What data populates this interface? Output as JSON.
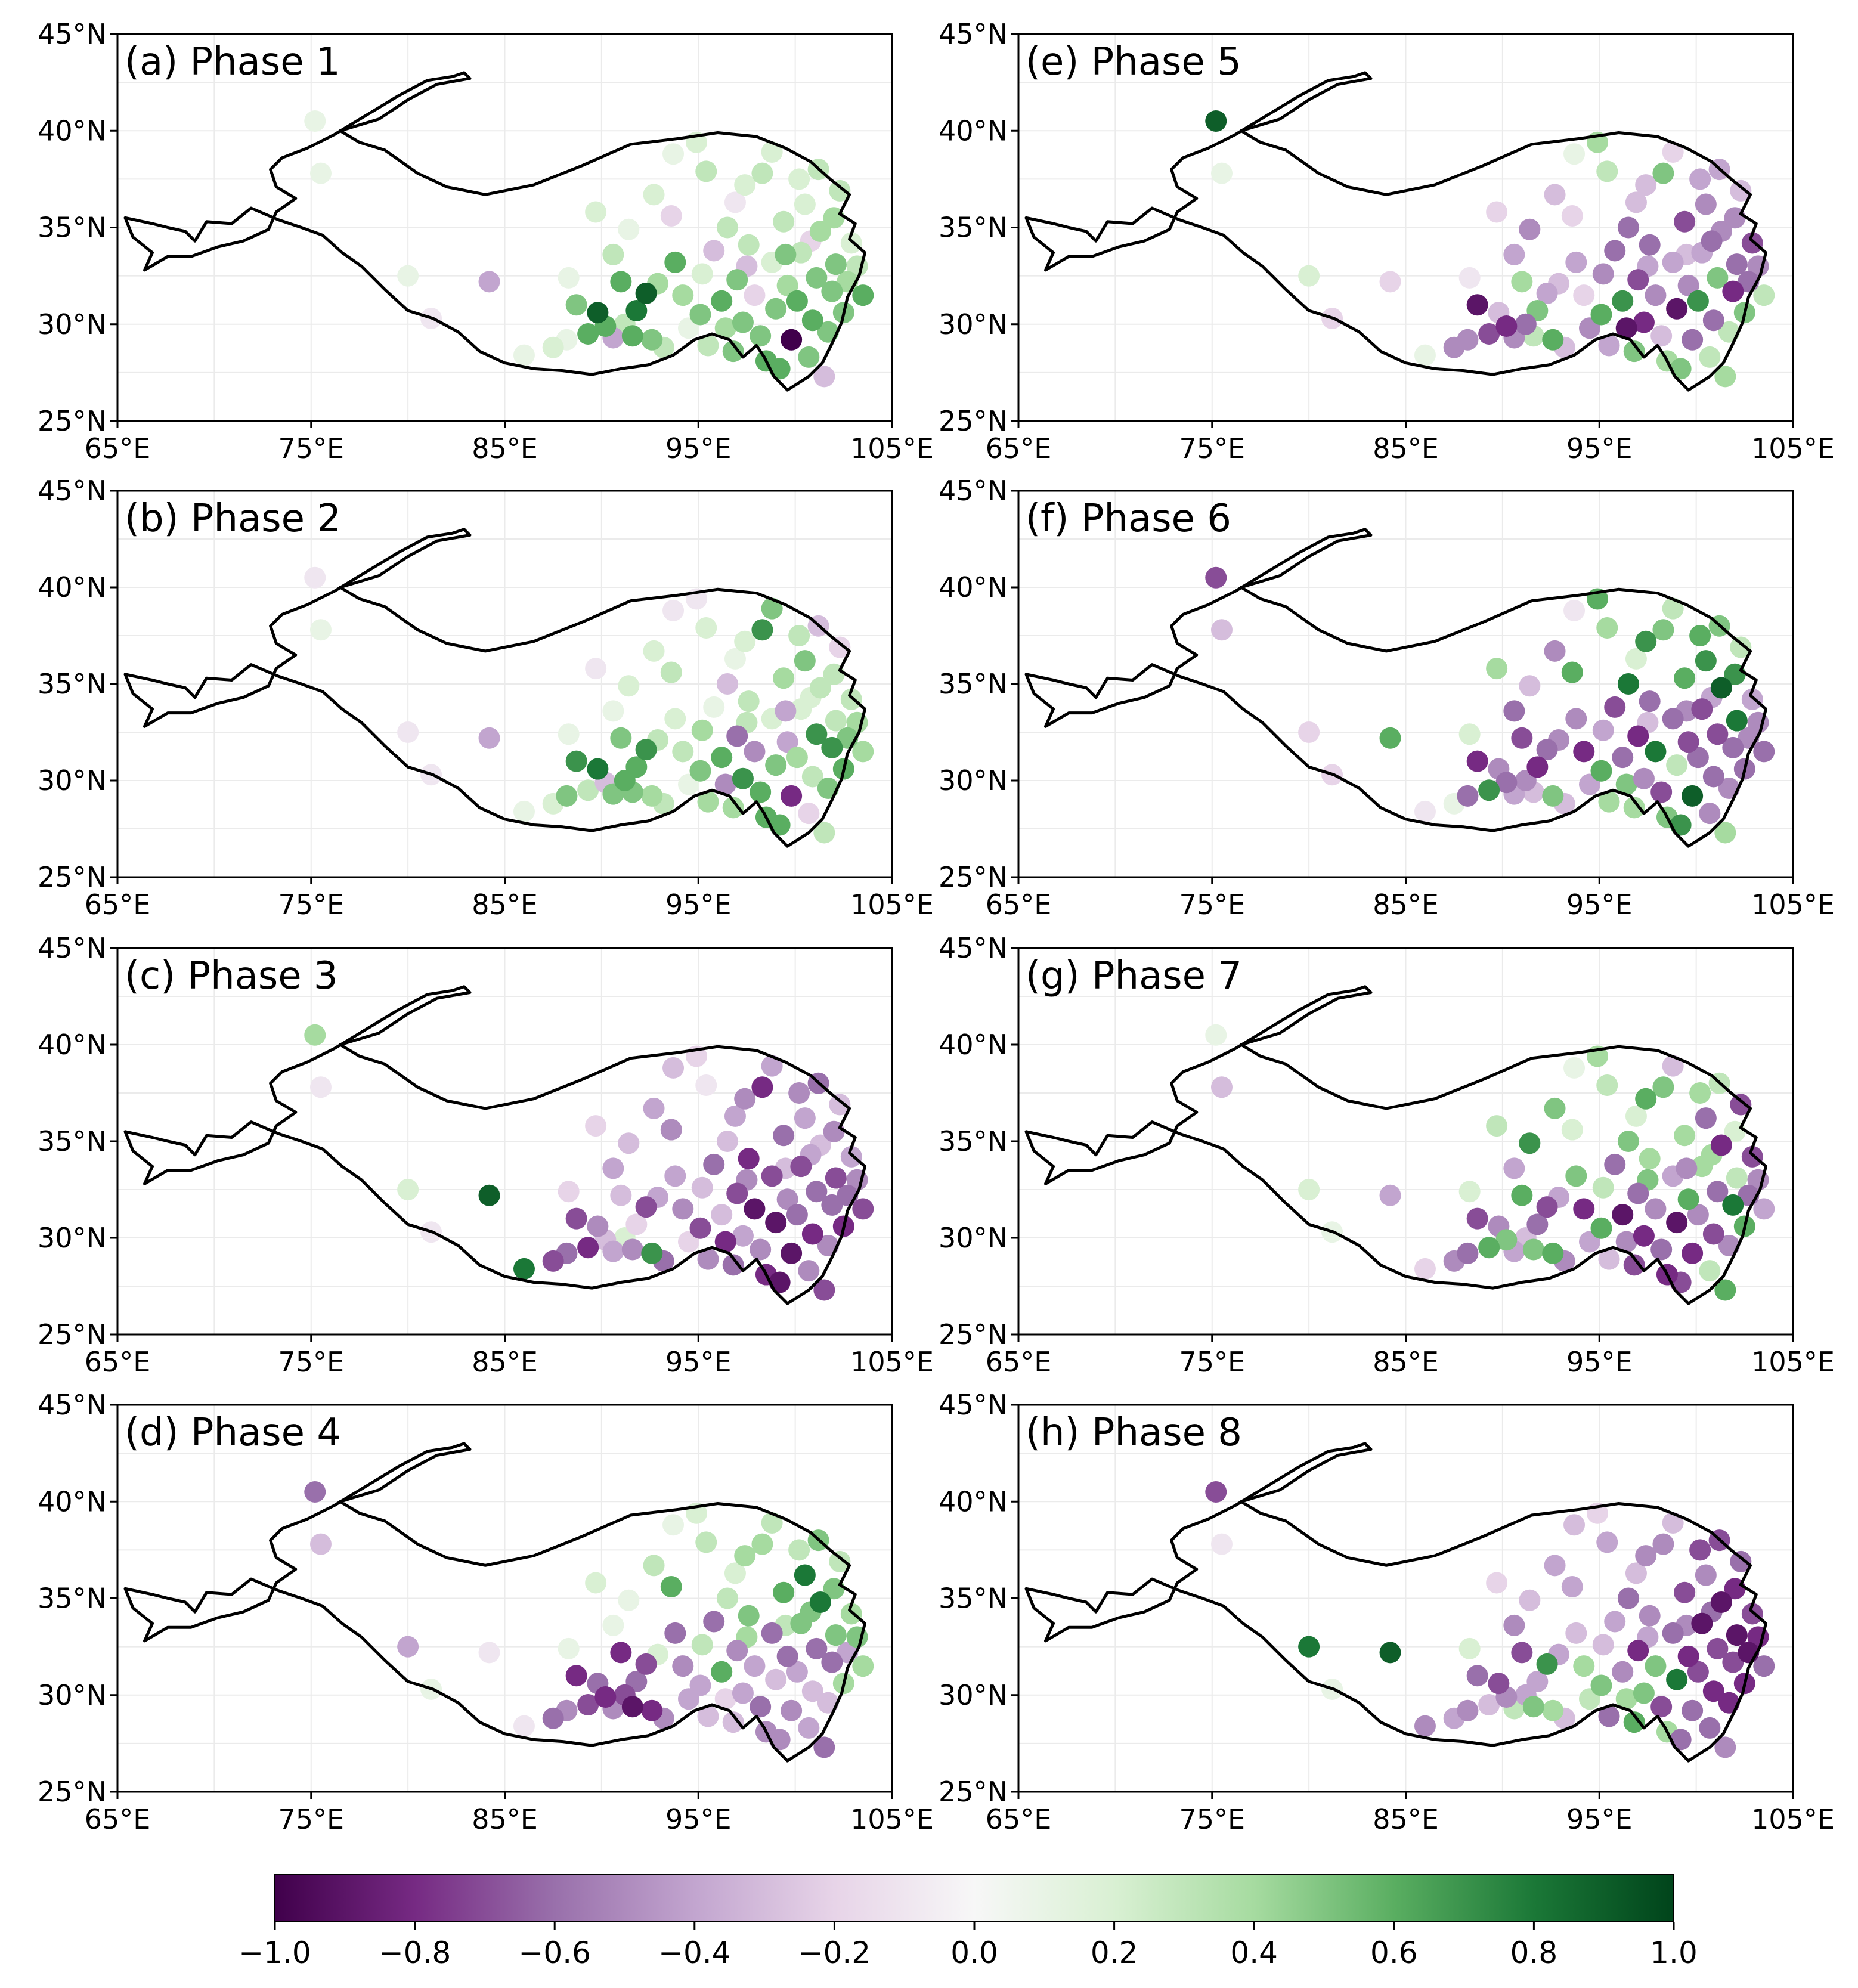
{
  "figure": {
    "colorbar": {
      "ticks": [
        "−1.0",
        "−0.8",
        "−0.6",
        "−0.4",
        "−0.2",
        "0.0",
        "0.2",
        "0.4",
        "0.6",
        "0.8",
        "1.0"
      ],
      "range": [
        -1.0,
        1.0
      ],
      "colormap": "PRGn",
      "low_color": "#40004b",
      "mid_color": "#f7f7f7",
      "high_color": "#00441b"
    },
    "axes": {
      "lon_ticks": [
        "65°E",
        "75°E",
        "85°E",
        "95°E",
        "105°E"
      ],
      "lat_ticks": [
        "45°N",
        "40°N",
        "35°N",
        "30°N",
        "25°N"
      ],
      "lon_range": [
        65,
        105
      ],
      "lat_range": [
        25,
        45
      ]
    },
    "panels": [
      {
        "title": "(a) Phase 1"
      },
      {
        "title": "(b) Phase 2"
      },
      {
        "title": "(c) Phase 3"
      },
      {
        "title": "(d) Phase 4"
      },
      {
        "title": "(e) Phase 5"
      },
      {
        "title": "(f) Phase 6"
      },
      {
        "title": "(g) Phase 7"
      },
      {
        "title": "(h) Phase 8"
      }
    ]
  },
  "chart_data": {
    "type": "scatter",
    "title": "",
    "xlabel": "",
    "ylabel": "",
    "xlim": [
      65,
      105
    ],
    "ylim": [
      25,
      45
    ],
    "stations": [
      [
        75.2,
        40.5
      ],
      [
        75.5,
        37.8
      ],
      [
        80.0,
        32.5
      ],
      [
        81.2,
        30.3
      ],
      [
        84.2,
        32.2
      ],
      [
        86.0,
        28.4
      ],
      [
        87.5,
        28.8
      ],
      [
        88.2,
        29.2
      ],
      [
        88.7,
        31.0
      ],
      [
        89.3,
        29.5
      ],
      [
        89.8,
        30.6
      ],
      [
        90.2,
        29.9
      ],
      [
        90.6,
        29.3
      ],
      [
        91.0,
        32.2
      ],
      [
        91.2,
        30.0
      ],
      [
        91.6,
        29.4
      ],
      [
        91.8,
        30.7
      ],
      [
        92.3,
        31.6
      ],
      [
        92.6,
        29.2
      ],
      [
        93.2,
        28.8
      ],
      [
        93.8,
        33.2
      ],
      [
        94.2,
        31.5
      ],
      [
        94.5,
        29.8
      ],
      [
        95.1,
        30.5
      ],
      [
        95.5,
        28.9
      ],
      [
        95.8,
        33.8
      ],
      [
        96.2,
        31.2
      ],
      [
        96.4,
        29.8
      ],
      [
        96.8,
        28.6
      ],
      [
        97.0,
        32.3
      ],
      [
        97.3,
        30.1
      ],
      [
        97.6,
        34.1
      ],
      [
        97.9,
        31.5
      ],
      [
        98.2,
        29.4
      ],
      [
        98.5,
        28.1
      ],
      [
        98.8,
        33.2
      ],
      [
        99.0,
        30.8
      ],
      [
        99.2,
        27.7
      ],
      [
        99.4,
        35.3
      ],
      [
        99.6,
        32.0
      ],
      [
        99.8,
        29.2
      ],
      [
        100.1,
        31.2
      ],
      [
        100.3,
        33.7
      ],
      [
        100.5,
        36.2
      ],
      [
        100.7,
        28.3
      ],
      [
        100.9,
        30.2
      ],
      [
        101.1,
        32.4
      ],
      [
        101.3,
        34.8
      ],
      [
        101.5,
        27.3
      ],
      [
        101.7,
        29.6
      ],
      [
        101.9,
        31.7
      ],
      [
        102.1,
        33.1
      ],
      [
        102.3,
        36.9
      ],
      [
        102.5,
        30.6
      ],
      [
        102.7,
        32.2
      ],
      [
        102.9,
        34.2
      ],
      [
        103.2,
        33.0
      ],
      [
        103.5,
        31.5
      ],
      [
        100.2,
        37.5
      ],
      [
        98.3,
        37.8
      ],
      [
        96.9,
        36.3
      ],
      [
        95.4,
        37.9
      ],
      [
        93.7,
        38.8
      ],
      [
        94.9,
        39.4
      ],
      [
        92.7,
        36.7
      ],
      [
        91.4,
        34.9
      ],
      [
        89.7,
        35.8
      ],
      [
        90.6,
        33.6
      ],
      [
        93.6,
        35.6
      ],
      [
        96.5,
        35.0
      ],
      [
        97.4,
        37.2
      ],
      [
        98.8,
        38.9
      ],
      [
        101.2,
        38.0
      ],
      [
        102.0,
        35.5
      ],
      [
        100.8,
        34.3
      ],
      [
        99.5,
        33.6
      ],
      [
        97.5,
        33.0
      ],
      [
        95.2,
        32.6
      ],
      [
        92.9,
        32.1
      ],
      [
        88.3,
        32.4
      ]
    ],
    "phase_values": [
      [
        0.1,
        0.1,
        0.1,
        -0.1,
        -0.4,
        0.1,
        0.2,
        0.1,
        0.5,
        0.6,
        0.9,
        0.6,
        -0.4,
        0.6,
        0.3,
        0.6,
        0.8,
        0.9,
        0.5,
        0.3,
        0.6,
        0.4,
        0.1,
        0.5,
        0.3,
        -0.3,
        0.6,
        0.4,
        0.5,
        0.5,
        0.5,
        0.3,
        -0.2,
        0.5,
        0.6,
        0.2,
        0.5,
        0.6,
        0.3,
        0.4,
        -1.0,
        0.6,
        0.3,
        0.2,
        0.5,
        0.6,
        0.5,
        0.4,
        -0.3,
        0.5,
        0.5,
        0.5,
        0.3,
        0.5,
        0.4,
        0.2,
        0.3,
        0.6,
        0.2,
        0.3,
        -0.1,
        0.3,
        0.1,
        0.2,
        0.2,
        0.1,
        0.2,
        0.3,
        -0.2,
        0.3,
        0.2,
        0.2,
        0.3,
        0.4,
        -0.2,
        0.5,
        -0.3,
        0.2,
        0.4,
        0.1
      ],
      [
        -0.1,
        0.1,
        -0.1,
        -0.1,
        -0.4,
        0.1,
        0.2,
        0.5,
        0.7,
        0.3,
        0.8,
        -0.3,
        0.5,
        0.5,
        0.6,
        0.5,
        0.6,
        0.7,
        0.4,
        0.3,
        0.2,
        0.3,
        0.1,
        0.5,
        0.4,
        0.1,
        0.6,
        -0.5,
        0.4,
        -0.6,
        0.7,
        0.3,
        -0.5,
        0.6,
        0.6,
        0.2,
        0.5,
        0.6,
        0.4,
        -0.4,
        -0.8,
        0.4,
        0.2,
        0.5,
        -0.2,
        0.3,
        0.7,
        0.3,
        0.3,
        0.5,
        0.7,
        0.3,
        -0.2,
        0.6,
        0.5,
        0.3,
        0.4,
        0.4,
        0.3,
        0.7,
        0.1,
        0.2,
        -0.1,
        -0.1,
        0.2,
        0.2,
        -0.1,
        0.1,
        0.3,
        -0.3,
        0.2,
        0.5,
        -0.3,
        0.3,
        0.2,
        -0.4,
        0.3,
        0.4,
        0.3,
        0.1
      ],
      [
        0.4,
        -0.1,
        0.2,
        -0.1,
        0.9,
        0.8,
        -0.7,
        -0.6,
        -0.7,
        -0.8,
        -0.5,
        -0.3,
        -0.4,
        -0.3,
        0.2,
        -0.5,
        -0.2,
        -0.7,
        0.7,
        -0.6,
        -0.4,
        -0.5,
        -0.2,
        -0.7,
        -0.5,
        -0.6,
        -0.3,
        -0.8,
        -0.6,
        -0.7,
        -0.4,
        -0.8,
        -0.9,
        -0.5,
        -0.8,
        -0.7,
        -0.9,
        -0.9,
        -0.6,
        -0.5,
        -0.9,
        -0.6,
        -0.7,
        -0.4,
        -0.5,
        -0.8,
        -0.6,
        -0.3,
        -0.7,
        -0.5,
        -0.6,
        -0.7,
        -0.3,
        -0.8,
        -0.6,
        -0.4,
        -0.5,
        -0.7,
        -0.5,
        -0.8,
        -0.4,
        -0.1,
        -0.3,
        -0.2,
        -0.4,
        -0.3,
        -0.2,
        -0.4,
        -0.5,
        -0.3,
        -0.5,
        -0.4,
        -0.6,
        -0.5,
        -0.4,
        -0.3,
        -0.5,
        -0.3,
        -0.4,
        -0.2
      ],
      [
        -0.6,
        -0.3,
        -0.4,
        0.1,
        -0.1,
        -0.1,
        -0.6,
        -0.5,
        -0.8,
        -0.7,
        -0.6,
        -0.8,
        -0.5,
        -0.8,
        -0.7,
        -0.9,
        -0.6,
        -0.7,
        -0.8,
        -0.5,
        -0.6,
        -0.5,
        -0.4,
        -0.4,
        -0.3,
        -0.6,
        0.6,
        -0.2,
        -0.3,
        -0.5,
        -0.4,
        0.5,
        -0.4,
        -0.6,
        -0.5,
        -0.6,
        -0.3,
        -0.5,
        0.6,
        -0.6,
        -0.5,
        -0.4,
        0.5,
        0.8,
        -0.4,
        -0.3,
        -0.6,
        0.8,
        -0.6,
        -0.3,
        -0.6,
        0.5,
        0.3,
        0.4,
        -0.4,
        0.4,
        0.5,
        0.4,
        0.3,
        0.4,
        0.2,
        0.3,
        0.1,
        0.2,
        0.3,
        0.1,
        0.2,
        0.1,
        0.6,
        0.3,
        0.4,
        0.3,
        0.5,
        0.5,
        0.5,
        0.3,
        0.4,
        0.3,
        0.2,
        0.1
      ],
      [
        0.9,
        0.1,
        0.2,
        -0.2,
        -0.2,
        0.1,
        -0.5,
        -0.5,
        -0.9,
        -0.7,
        -0.3,
        -0.8,
        -0.5,
        0.4,
        -0.6,
        0.3,
        0.5,
        -0.4,
        0.6,
        -0.3,
        -0.4,
        -0.2,
        -0.5,
        0.6,
        -0.4,
        -0.6,
        0.7,
        -0.9,
        0.5,
        -0.7,
        -0.8,
        -0.6,
        -0.5,
        -0.3,
        0.4,
        -0.4,
        -0.9,
        0.5,
        -0.7,
        -0.5,
        -0.6,
        0.7,
        -0.4,
        -0.5,
        0.3,
        -0.6,
        0.5,
        -0.5,
        0.4,
        0.3,
        -0.8,
        -0.6,
        -0.3,
        0.5,
        -0.6,
        -0.7,
        -0.5,
        0.3,
        -0.4,
        0.5,
        -0.3,
        0.3,
        0.1,
        0.4,
        -0.3,
        -0.5,
        -0.2,
        -0.4,
        -0.2,
        -0.6,
        -0.3,
        -0.2,
        -0.4,
        -0.5,
        -0.6,
        -0.3,
        -0.4,
        -0.5,
        -0.3,
        -0.1
      ],
      [
        -0.7,
        -0.3,
        -0.2,
        -0.2,
        0.6,
        -0.1,
        0.1,
        -0.6,
        -0.8,
        0.7,
        -0.5,
        -0.6,
        -0.4,
        -0.7,
        -0.5,
        -0.3,
        -0.8,
        -0.6,
        0.5,
        -0.3,
        -0.5,
        -0.8,
        -0.4,
        0.6,
        0.4,
        -0.7,
        -0.6,
        0.5,
        0.4,
        -0.8,
        -0.5,
        -0.6,
        0.8,
        -0.7,
        0.5,
        -0.6,
        0.3,
        0.7,
        0.6,
        -0.7,
        0.9,
        -0.6,
        -0.7,
        0.7,
        -0.5,
        -0.6,
        -0.7,
        0.9,
        0.4,
        -0.5,
        -0.6,
        0.8,
        0.3,
        -0.6,
        -0.5,
        -0.4,
        -0.5,
        -0.6,
        0.6,
        0.5,
        0.2,
        0.4,
        -0.1,
        0.6,
        -0.5,
        -0.3,
        0.4,
        -0.6,
        0.6,
        0.8,
        0.7,
        0.3,
        0.5,
        0.7,
        -0.4,
        -0.5,
        -0.3,
        -0.4,
        -0.5,
        0.2
      ],
      [
        0.1,
        -0.3,
        0.2,
        0.1,
        -0.4,
        -0.2,
        -0.5,
        -0.6,
        -0.7,
        0.6,
        -0.5,
        0.5,
        -0.4,
        0.6,
        -0.3,
        0.5,
        -0.6,
        -0.7,
        0.6,
        -0.5,
        0.5,
        -0.8,
        -0.4,
        0.6,
        -0.3,
        -0.6,
        -0.9,
        -0.5,
        -0.7,
        -0.6,
        -0.8,
        0.4,
        -0.5,
        -0.6,
        -0.8,
        -0.4,
        -0.9,
        -0.7,
        0.4,
        0.6,
        -0.8,
        -0.5,
        0.4,
        -0.6,
        0.3,
        -0.7,
        -0.6,
        -0.8,
        0.6,
        -0.5,
        0.8,
        0.3,
        -0.7,
        0.6,
        -0.6,
        -0.7,
        -0.5,
        -0.4,
        0.4,
        0.5,
        0.2,
        0.3,
        0.1,
        0.4,
        0.5,
        0.7,
        0.3,
        -0.4,
        0.2,
        0.5,
        0.6,
        -0.3,
        0.3,
        0.2,
        0.4,
        -0.5,
        0.5,
        0.3,
        -0.4,
        0.2
      ],
      [
        -0.7,
        -0.1,
        0.8,
        0.1,
        0.9,
        -0.5,
        -0.4,
        -0.5,
        -0.6,
        -0.3,
        -0.7,
        -0.5,
        0.3,
        -0.7,
        -0.4,
        0.5,
        -0.4,
        0.7,
        0.4,
        -0.3,
        -0.3,
        0.4,
        0.3,
        0.5,
        -0.6,
        -0.4,
        -0.5,
        0.4,
        0.6,
        -0.8,
        0.5,
        -0.5,
        0.5,
        -0.7,
        0.4,
        -0.6,
        0.8,
        -0.6,
        -0.7,
        -0.8,
        -0.6,
        -0.7,
        -0.9,
        -0.5,
        -0.6,
        -0.8,
        -0.7,
        -0.9,
        -0.5,
        -0.8,
        -0.7,
        -0.9,
        -0.6,
        -0.8,
        -0.9,
        -0.7,
        -0.8,
        -0.6,
        -0.7,
        -0.5,
        -0.3,
        -0.4,
        -0.3,
        -0.2,
        -0.4,
        -0.3,
        -0.2,
        -0.5,
        -0.4,
        -0.6,
        -0.5,
        -0.3,
        -0.7,
        -0.8,
        -0.6,
        -0.5,
        -0.4,
        -0.3,
        -0.4,
        0.2
      ]
    ]
  }
}
